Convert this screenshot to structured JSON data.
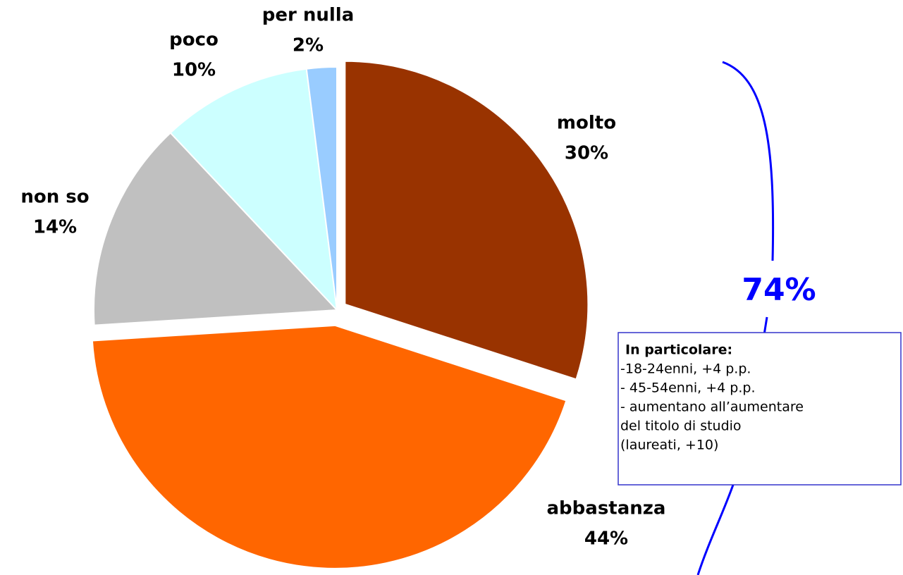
{
  "chart_data": {
    "type": "pie",
    "categories": [
      "molto",
      "abbastanza",
      "non so",
      "poco",
      "per nulla"
    ],
    "values": [
      30,
      44,
      14,
      10,
      2
    ],
    "value_labels": [
      "30%",
      "44%",
      "14%",
      "10%",
      "2%"
    ],
    "colors": [
      "#993300",
      "#ff6600",
      "#c0c0c0",
      "#ccffff",
      "#99ccff"
    ],
    "annotation": "74%",
    "note_title": "In particolare:",
    "note_lines": [
      "-18-24enni, +4 p.p.",
      "- 45-54enni, +4 p.p.",
      "- aumentano all’aumentare",
      "del titolo di studio",
      "(laureati, +10)"
    ]
  }
}
